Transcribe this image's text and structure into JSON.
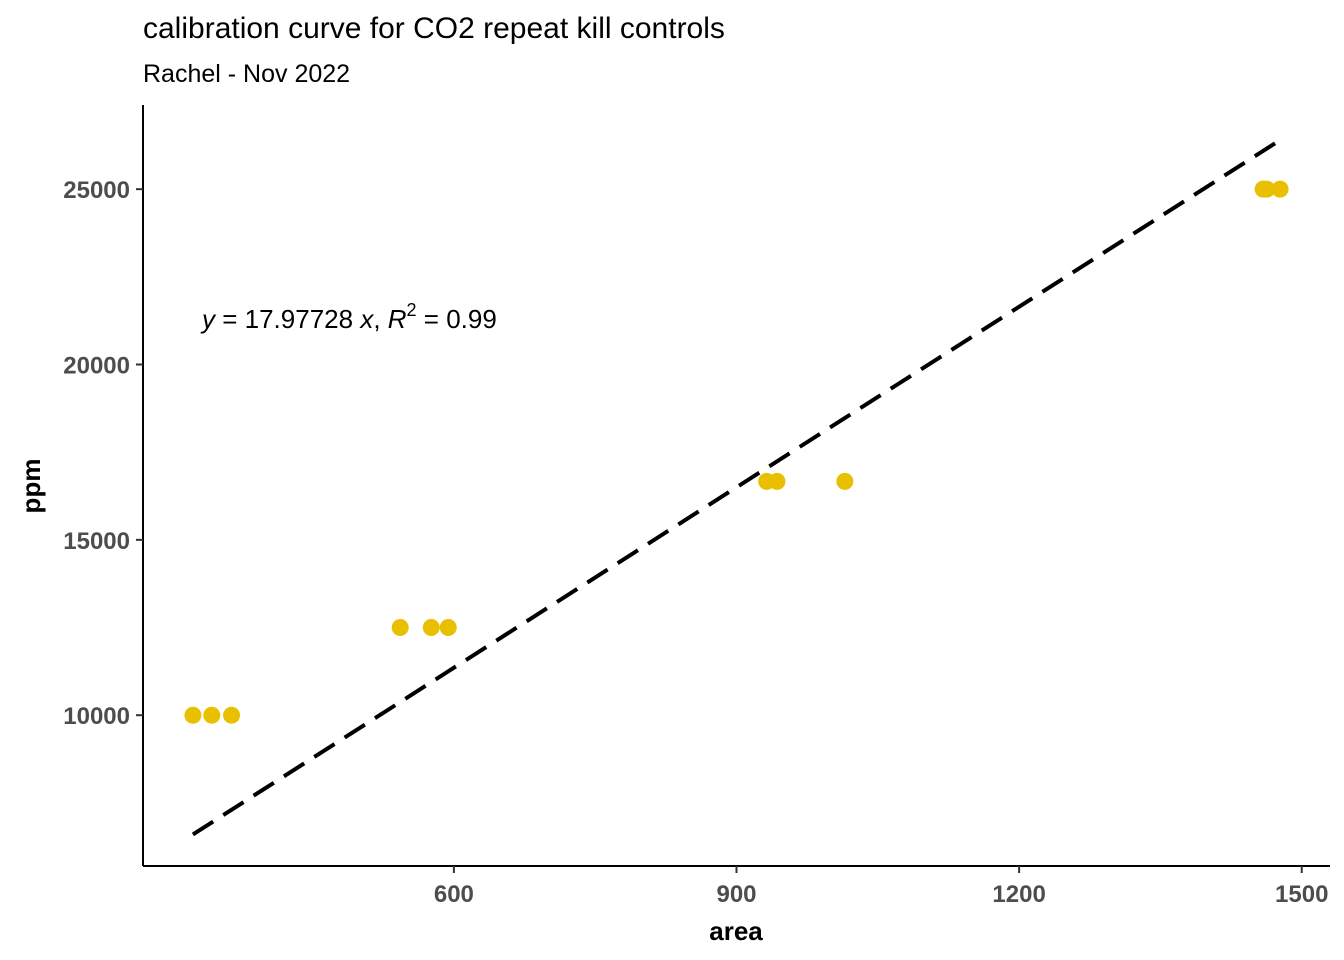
{
  "chart_data": {
    "type": "scatter",
    "title": "calibration curve for CO2 repeat kill controls",
    "subtitle": "Rachel - Nov 2022",
    "xlabel": "area",
    "ylabel": "ppm",
    "xlim": [
      270,
      1530
    ],
    "ylim": [
      5700,
      27400
    ],
    "xticks": [
      600,
      900,
      1200,
      1500
    ],
    "yticks": [
      10000,
      15000,
      20000,
      25000
    ],
    "grid": false,
    "point_color": "#E8C000",
    "line_color": "#000000",
    "points": [
      {
        "x": 323,
        "y": 10000
      },
      {
        "x": 343,
        "y": 10000
      },
      {
        "x": 364,
        "y": 10000
      },
      {
        "x": 543,
        "y": 12500
      },
      {
        "x": 576,
        "y": 12500
      },
      {
        "x": 594,
        "y": 12500
      },
      {
        "x": 932,
        "y": 16667
      },
      {
        "x": 943,
        "y": 16667
      },
      {
        "x": 1015,
        "y": 16667
      },
      {
        "x": 1459,
        "y": 25000
      },
      {
        "x": 1463,
        "y": 25000
      },
      {
        "x": 1477,
        "y": 25000
      }
    ],
    "fit": {
      "style": "dashed",
      "x": [
        323,
        1477
      ],
      "y": [
        6600,
        26400
      ]
    },
    "annotation": {
      "y_var": "y",
      "eq_text": " = 17.97728 ",
      "x_var": "x",
      "sep": ", ",
      "r_var": "R",
      "r_exp": "2",
      "r_text": " = 0.99"
    }
  }
}
